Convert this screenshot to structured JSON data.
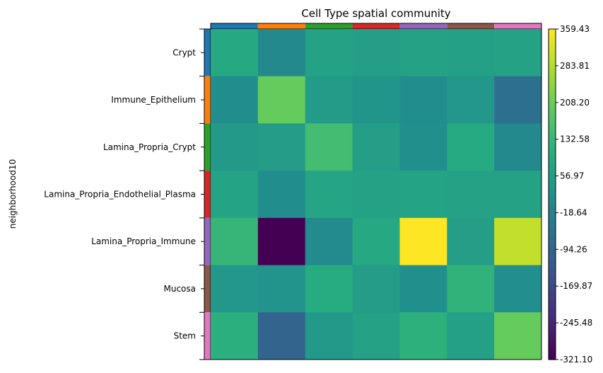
{
  "chart_data": {
    "type": "heatmap",
    "title": "Cell Type spatial community",
    "ylabel": "neighborhood10",
    "xlabel": "",
    "rows": [
      "Crypt",
      "Immune_Epithelium",
      "Lamina_Propria_Crypt",
      "Lamina_Propria_Endothelial_Plasma",
      "Lamina_Propria_Immune",
      "Mucosa",
      "Stem"
    ],
    "row_colors": [
      "#1f77b4",
      "#ff7f0e",
      "#2ca02c",
      "#d62728",
      "#9467bd",
      "#8c564b",
      "#e377c2"
    ],
    "column_colors": [
      "#1f77b4",
      "#ff7f0e",
      "#2ca02c",
      "#d62728",
      "#9467bd",
      "#8c564b",
      "#e377c2"
    ],
    "values": [
      [
        90,
        0,
        70,
        60,
        70,
        65,
        72
      ],
      [
        10,
        200,
        50,
        35,
        10,
        40,
        -70
      ],
      [
        45,
        55,
        150,
        60,
        20,
        95,
        0
      ],
      [
        75,
        10,
        80,
        70,
        75,
        70,
        72
      ],
      [
        130,
        -321,
        5,
        90,
        359,
        60,
        300
      ],
      [
        40,
        30,
        100,
        55,
        20,
        120,
        15
      ],
      [
        110,
        -100,
        45,
        70,
        115,
        65,
        200
      ]
    ],
    "colorbar": {
      "min": -321.1,
      "max": 359.43,
      "ticks": [
        "359.43",
        "283.81",
        "208.20",
        "132.58",
        "56.97",
        "-18.64",
        "-94.26",
        "-169.87",
        "-245.48",
        "-321.10"
      ],
      "colormap": "viridis"
    }
  }
}
